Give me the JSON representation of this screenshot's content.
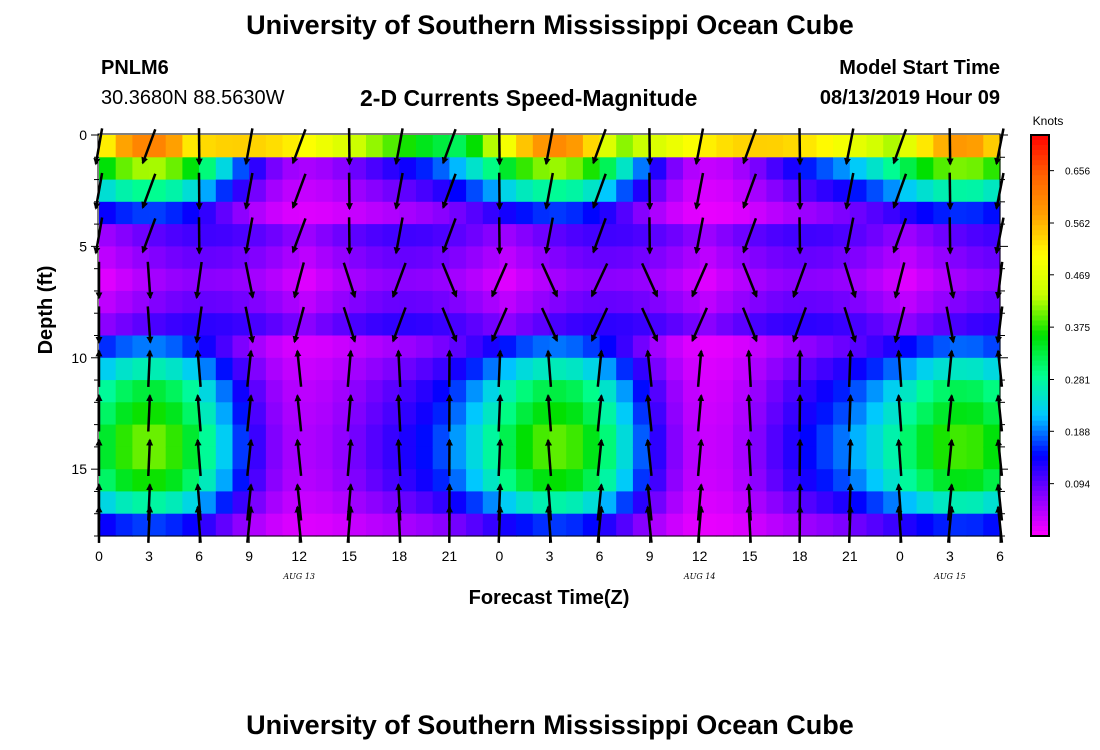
{
  "page": {
    "title": "University of Southern Mississippi Ocean Cube",
    "footer_title": "University of Southern Mississippi Ocean Cube",
    "station_id": "PNLM6",
    "station_coords": "30.3680N 88.5630W",
    "plot_title": "2-D Currents Speed-Magnitude",
    "model_start_label": "Model Start Time",
    "model_start_value": "08/13/2019 Hour 09"
  },
  "chart_data": {
    "type": "heatmap",
    "title": "2-D Currents Speed-Magnitude",
    "xlabel": "Forecast Time(Z)",
    "ylabel": "Depth (ft)",
    "x_tick_labels": [
      "0",
      "3",
      "6",
      "9",
      "12",
      "15",
      "18",
      "21",
      "0",
      "3",
      "6",
      "9",
      "12",
      "15",
      "18",
      "21",
      "0",
      "3",
      "6"
    ],
    "x_range_hours": [
      0,
      54
    ],
    "date_labels": [
      {
        "text": "AUG 13",
        "hour": 12
      },
      {
        "text": "AUG 14",
        "hour": 36
      },
      {
        "text": "AUG 15",
        "hour": 51
      }
    ],
    "y_ticks": [
      0,
      5,
      10,
      15
    ],
    "y_range_ft": [
      0,
      18
    ],
    "inverted_y": true,
    "grid": false,
    "colorbar": {
      "unit": "Knots",
      "labels": [
        "0.656",
        "0.562",
        "0.469",
        "0.375",
        "0.281",
        "0.188",
        "0.094"
      ],
      "ticks": [
        0.656,
        0.562,
        0.469,
        0.375,
        0.281,
        0.188,
        0.094
      ],
      "range": [
        0.0,
        0.72
      ],
      "colors": [
        "#ff00ff",
        "#8800ff",
        "#0000ff",
        "#00c8ff",
        "#00ff90",
        "#00e000",
        "#c8ff00",
        "#ffff00",
        "#ffa000",
        "#ff6000",
        "#ff0000"
      ]
    },
    "depth_levels_ft": [
      0.5,
      1.5,
      2.5,
      3.5,
      4.5,
      5.5,
      6.5,
      7.5,
      8.5,
      9.5,
      10.5,
      11.5,
      12.5,
      13.5,
      14.5,
      15.5,
      16.5,
      17.5
    ],
    "speed_profile_knots": {
      "0.5": 0.55,
      "1.5": 0.38,
      "2.5": 0.26,
      "3.5": 0.15,
      "4.5": 0.06,
      "5.5": 0.04,
      "6.5": 0.02,
      "7.5": 0.04,
      "8.5": 0.07,
      "9.5": 0.17,
      "10.5": 0.24,
      "11.5": 0.3,
      "12.5": 0.33,
      "13.5": 0.36,
      "14.5": 0.36,
      "15.5": 0.33,
      "16.5": 0.25,
      "17.5": 0.15
    },
    "vector_depths_ft": [
      0.5,
      2.5,
      4.5,
      6.5,
      8.5,
      10.5,
      12.5,
      14.5,
      16.5,
      17.5
    ],
    "vector_hour_step": 3
  }
}
